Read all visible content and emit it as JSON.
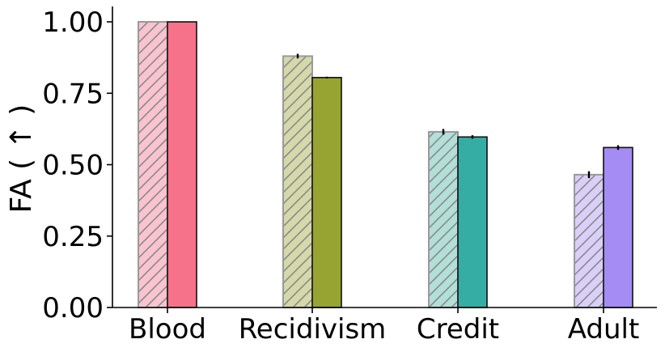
{
  "chart_data": {
    "type": "bar",
    "categories": [
      "Blood",
      "Recidivism",
      "Credit",
      "Adult"
    ],
    "ylabel": "FA ( ↑ )",
    "xlabel": "",
    "ylim": [
      0,
      1.05
    ],
    "yticks": [
      "0.00",
      "0.25",
      "0.50",
      "0.75",
      "1.00"
    ],
    "ytick_values": [
      0,
      0.25,
      0.5,
      0.75,
      1.0
    ],
    "grid": false,
    "legend": "none",
    "series": [
      {
        "style": "hatched-light",
        "values": [
          1.0,
          0.88,
          0.615,
          0.465
        ],
        "errors": [
          0.0,
          0.008,
          0.01,
          0.012
        ]
      },
      {
        "style": "solid",
        "values": [
          1.0,
          0.805,
          0.597,
          0.56
        ],
        "errors": [
          0.0,
          0.003,
          0.006,
          0.008
        ]
      }
    ],
    "colors": {
      "light": [
        "#f9c3d0",
        "#d5d9aa",
        "#b2dfd8",
        "#d9cff8"
      ],
      "solid": [
        "#f6728a",
        "#97a432",
        "#36ada4",
        "#a48cf4"
      ]
    }
  }
}
